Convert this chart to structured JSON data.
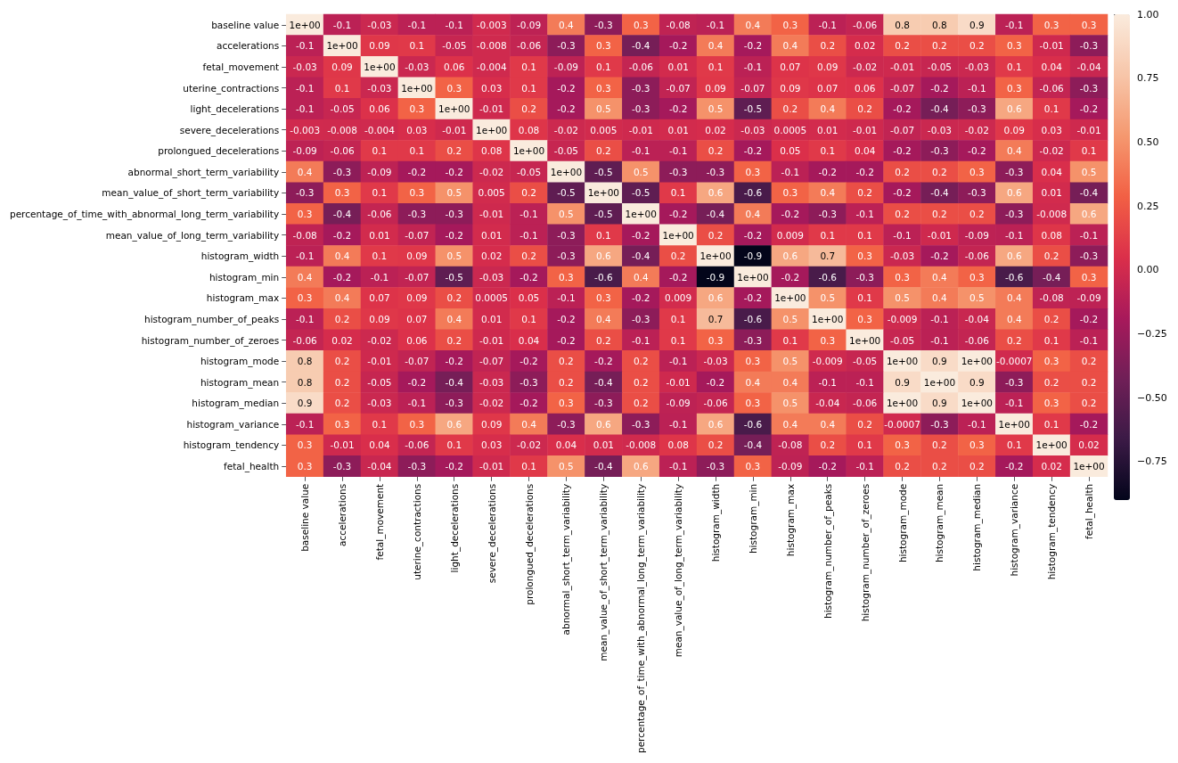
{
  "chart_data": {
    "type": "heatmap",
    "categories": [
      "baseline value",
      "accelerations",
      "fetal_movement",
      "uterine_contractions",
      "light_decelerations",
      "severe_decelerations",
      "prolongued_decelerations",
      "abnormal_short_term_variability",
      "mean_value_of_short_term_variability",
      "percentage_of_time_with_abnormal_long_term_variability",
      "mean_value_of_long_term_variability",
      "histogram_width",
      "histogram_min",
      "histogram_max",
      "histogram_number_of_peaks",
      "histogram_number_of_zeroes",
      "histogram_mode",
      "histogram_mean",
      "histogram_median",
      "histogram_variance",
      "histogram_tendency",
      "fetal_health"
    ],
    "y_categories": [
      "baseline value",
      "accelerations",
      "fetal_movement",
      "uterine_contractions",
      "light_decelerations",
      "severe_decelerations",
      "prolongued_decelerations",
      "abnormal_short_term_variability",
      "mean_value_of_short_term_variability",
      "percentage_of_time_with_abnormal_long_term_variability",
      "mean_value_of_long_term_variability",
      "histogram_width",
      "histogram_min",
      "histogram_max",
      "histogram_number_of_peaks",
      "histogram_number_of_zeroes",
      "histogram_mode",
      "histogram_mean",
      "histogram_median",
      "histogram_variance",
      "histogram_tendency",
      "fetal_health"
    ],
    "cells": [
      [
        1,
        -0.1,
        -0.03,
        -0.1,
        -0.1,
        -0.003,
        -0.09,
        0.4,
        -0.3,
        0.3,
        -0.08,
        -0.1,
        0.4,
        0.3,
        -0.1,
        -0.06,
        0.8,
        0.8,
        0.9,
        -0.1,
        0.3,
        0.3
      ],
      [
        -0.1,
        1,
        0.09,
        0.1,
        -0.05,
        -0.008,
        -0.06,
        -0.3,
        0.3,
        -0.4,
        -0.2,
        0.4,
        -0.2,
        0.4,
        0.2,
        0.02,
        0.2,
        0.2,
        0.2,
        0.3,
        -0.01,
        -0.3
      ],
      [
        -0.03,
        0.09,
        1,
        -0.03,
        0.06,
        -0.004,
        0.1,
        -0.09,
        0.1,
        -0.06,
        0.01,
        0.1,
        -0.1,
        0.07,
        0.09,
        -0.02,
        -0.01,
        -0.05,
        -0.03,
        0.1,
        0.04,
        -0.04
      ],
      [
        -0.1,
        0.1,
        -0.03,
        1,
        0.3,
        0.03,
        0.1,
        -0.2,
        0.3,
        -0.3,
        -0.07,
        0.09,
        -0.07,
        0.09,
        0.07,
        0.06,
        -0.07,
        -0.2,
        -0.1,
        0.3,
        -0.06,
        -0.3
      ],
      [
        -0.1,
        -0.05,
        0.06,
        0.3,
        1,
        -0.01,
        0.2,
        -0.2,
        0.5,
        -0.3,
        -0.2,
        0.5,
        -0.5,
        0.2,
        0.4,
        0.2,
        -0.2,
        -0.4,
        -0.3,
        0.6,
        0.1,
        -0.2
      ],
      [
        -0.003,
        -0.008,
        -0.004,
        0.03,
        -0.01,
        1,
        0.08,
        -0.02,
        0.005,
        -0.01,
        0.01,
        0.02,
        -0.03,
        0.0005,
        0.01,
        -0.01,
        -0.07,
        -0.03,
        -0.02,
        0.09,
        0.03,
        -0.01
      ],
      [
        -0.09,
        -0.06,
        0.1,
        0.1,
        0.2,
        0.08,
        1,
        -0.05,
        0.2,
        -0.1,
        -0.1,
        0.2,
        -0.2,
        0.05,
        0.1,
        0.04,
        -0.2,
        -0.3,
        -0.2,
        0.4,
        -0.02,
        0.1
      ],
      [
        0.4,
        -0.3,
        -0.09,
        -0.2,
        -0.2,
        -0.02,
        -0.05,
        1,
        -0.5,
        0.5,
        -0.3,
        -0.3,
        0.3,
        -0.1,
        -0.2,
        -0.2,
        0.2,
        0.2,
        0.3,
        -0.3,
        0.04,
        0.5
      ],
      [
        -0.3,
        0.3,
        0.1,
        0.3,
        0.5,
        0.005,
        0.2,
        -0.5,
        1,
        -0.5,
        0.1,
        0.6,
        -0.6,
        0.3,
        0.4,
        0.2,
        -0.2,
        -0.4,
        -0.3,
        0.6,
        0.01,
        -0.4
      ],
      [
        0.3,
        -0.4,
        -0.06,
        -0.3,
        -0.3,
        -0.01,
        -0.1,
        0.5,
        -0.5,
        1,
        -0.2,
        -0.4,
        0.4,
        -0.2,
        -0.3,
        -0.1,
        0.2,
        0.2,
        0.2,
        -0.3,
        -0.008,
        0.6
      ],
      [
        -0.08,
        -0.2,
        0.01,
        -0.07,
        -0.2,
        0.01,
        -0.1,
        -0.3,
        0.1,
        -0.2,
        1,
        0.2,
        -0.2,
        0.009,
        0.1,
        0.1,
        -0.1,
        -0.01,
        -0.09,
        -0.1,
        0.08,
        -0.1
      ],
      [
        -0.1,
        0.4,
        0.1,
        0.09,
        0.5,
        0.02,
        0.2,
        -0.3,
        0.6,
        -0.4,
        0.2,
        1,
        -0.9,
        0.6,
        0.7,
        0.3,
        -0.03,
        -0.2,
        -0.06,
        0.6,
        0.2,
        -0.3
      ],
      [
        0.4,
        -0.2,
        -0.1,
        -0.07,
        -0.5,
        -0.03,
        -0.2,
        0.3,
        -0.6,
        0.4,
        -0.2,
        -0.9,
        1,
        -0.2,
        -0.6,
        -0.3,
        0.3,
        0.4,
        0.3,
        -0.6,
        -0.4,
        0.3
      ],
      [
        0.3,
        0.4,
        0.07,
        0.09,
        0.2,
        0.0005,
        0.05,
        -0.1,
        0.3,
        -0.2,
        0.009,
        0.6,
        -0.2,
        1,
        0.5,
        0.1,
        0.5,
        0.4,
        0.5,
        0.4,
        -0.08,
        -0.09
      ],
      [
        -0.1,
        0.2,
        0.09,
        0.07,
        0.4,
        0.01,
        0.1,
        -0.2,
        0.4,
        -0.3,
        0.1,
        0.7,
        -0.6,
        0.5,
        1,
        0.3,
        -0.009,
        -0.1,
        -0.04,
        0.4,
        0.2,
        -0.2
      ],
      [
        -0.06,
        0.02,
        -0.02,
        0.06,
        0.2,
        -0.01,
        0.04,
        -0.2,
        0.2,
        -0.1,
        0.1,
        0.3,
        -0.3,
        0.1,
        0.3,
        1,
        -0.05,
        -0.1,
        -0.06,
        0.2,
        0.1,
        -0.1
      ],
      [
        0.8,
        0.2,
        -0.01,
        -0.07,
        -0.2,
        -0.07,
        -0.2,
        0.2,
        -0.2,
        0.2,
        -0.1,
        -0.03,
        0.3,
        0.5,
        -0.009,
        -0.05,
        1,
        0.9,
        1,
        -0.0007,
        0.3,
        0.2
      ],
      [
        0.8,
        0.2,
        -0.05,
        -0.2,
        -0.4,
        -0.03,
        -0.3,
        0.2,
        -0.4,
        0.2,
        -0.01,
        -0.2,
        0.4,
        0.4,
        -0.1,
        -0.1,
        0.9,
        1,
        0.9,
        -0.3,
        0.2,
        0.2
      ],
      [
        0.9,
        0.2,
        -0.03,
        -0.1,
        -0.3,
        -0.02,
        -0.2,
        0.3,
        -0.3,
        0.2,
        -0.09,
        -0.06,
        0.3,
        0.5,
        -0.04,
        -0.06,
        1,
        0.9,
        1,
        -0.1,
        0.3,
        0.2
      ],
      [
        -0.1,
        0.3,
        0.1,
        0.3,
        0.6,
        0.09,
        0.4,
        -0.3,
        0.6,
        -0.3,
        -0.1,
        0.6,
        -0.6,
        0.4,
        0.4,
        0.2,
        -0.0007,
        -0.3,
        -0.1,
        1,
        0.1,
        -0.2
      ],
      [
        0.3,
        -0.01,
        0.04,
        -0.06,
        0.1,
        0.03,
        -0.02,
        0.04,
        0.01,
        -0.008,
        0.08,
        0.2,
        -0.4,
        -0.08,
        0.2,
        0.1,
        0.3,
        0.2,
        0.3,
        0.1,
        1,
        0.02
      ],
      [
        0.3,
        -0.3,
        -0.04,
        -0.3,
        -0.2,
        -0.01,
        0.1,
        0.5,
        -0.4,
        0.6,
        -0.1,
        -0.3,
        0.3,
        -0.09,
        -0.2,
        -0.1,
        0.2,
        0.2,
        0.2,
        -0.2,
        0.02,
        1
      ]
    ],
    "cell_labels": [
      [
        "1e+00",
        "-0.1",
        "-0.03",
        "-0.1",
        "-0.1",
        "-0.003",
        "-0.09",
        "0.4",
        "-0.3",
        "0.3",
        "-0.08",
        "-0.1",
        "0.4",
        "0.3",
        "-0.1",
        "-0.06",
        "0.8",
        "0.8",
        "0.9",
        "-0.1",
        "0.3",
        "0.3"
      ],
      [
        "-0.1",
        "1e+00",
        "0.09",
        "0.1",
        "-0.05",
        "-0.008",
        "-0.06",
        "-0.3",
        "0.3",
        "-0.4",
        "-0.2",
        "0.4",
        "-0.2",
        "0.4",
        "0.2",
        "0.02",
        "0.2",
        "0.2",
        "0.2",
        "0.3",
        "-0.01",
        "-0.3"
      ],
      [
        "-0.03",
        "0.09",
        "1e+00",
        "-0.03",
        "0.06",
        "-0.004",
        "0.1",
        "-0.09",
        "0.1",
        "-0.06",
        "0.01",
        "0.1",
        "-0.1",
        "0.07",
        "0.09",
        "-0.02",
        "-0.01",
        "-0.05",
        "-0.03",
        "0.1",
        "0.04",
        "-0.04"
      ],
      [
        "-0.1",
        "0.1",
        "-0.03",
        "1e+00",
        "0.3",
        "0.03",
        "0.1",
        "-0.2",
        "0.3",
        "-0.3",
        "-0.07",
        "0.09",
        "-0.07",
        "0.09",
        "0.07",
        "0.06",
        "-0.07",
        "-0.2",
        "-0.1",
        "0.3",
        "-0.06",
        "-0.3"
      ],
      [
        "-0.1",
        "-0.05",
        "0.06",
        "0.3",
        "1e+00",
        "-0.01",
        "0.2",
        "-0.2",
        "0.5",
        "-0.3",
        "-0.2",
        "0.5",
        "-0.5",
        "0.2",
        "0.4",
        "0.2",
        "-0.2",
        "-0.4",
        "-0.3",
        "0.6",
        "0.1",
        "-0.2"
      ],
      [
        "-0.003",
        "-0.008",
        "-0.004",
        "0.03",
        "-0.01",
        "1e+00",
        "0.08",
        "-0.02",
        "0.005",
        "-0.01",
        "0.01",
        "0.02",
        "-0.03",
        "0.0005",
        "0.01",
        "-0.01",
        "-0.07",
        "-0.03",
        "-0.02",
        "0.09",
        "0.03",
        "-0.01"
      ],
      [
        "-0.09",
        "-0.06",
        "0.1",
        "0.1",
        "0.2",
        "0.08",
        "1e+00",
        "-0.05",
        "0.2",
        "-0.1",
        "-0.1",
        "0.2",
        "-0.2",
        "0.05",
        "0.1",
        "0.04",
        "-0.2",
        "-0.3",
        "-0.2",
        "0.4",
        "-0.02",
        "0.1"
      ],
      [
        "0.4",
        "-0.3",
        "-0.09",
        "-0.2",
        "-0.2",
        "-0.02",
        "-0.05",
        "1e+00",
        "-0.5",
        "0.5",
        "-0.3",
        "-0.3",
        "0.3",
        "-0.1",
        "-0.2",
        "-0.2",
        "0.2",
        "0.2",
        "0.3",
        "-0.3",
        "0.04",
        "0.5"
      ],
      [
        "-0.3",
        "0.3",
        "0.1",
        "0.3",
        "0.5",
        "0.005",
        "0.2",
        "-0.5",
        "1e+00",
        "-0.5",
        "0.1",
        "0.6",
        "-0.6",
        "0.3",
        "0.4",
        "0.2",
        "-0.2",
        "-0.4",
        "-0.3",
        "0.6",
        "0.01",
        "-0.4"
      ],
      [
        "0.3",
        "-0.4",
        "-0.06",
        "-0.3",
        "-0.3",
        "-0.01",
        "-0.1",
        "0.5",
        "-0.5",
        "1e+00",
        "-0.2",
        "-0.4",
        "0.4",
        "-0.2",
        "-0.3",
        "-0.1",
        "0.2",
        "0.2",
        "0.2",
        "-0.3",
        "-0.008",
        "0.6"
      ],
      [
        "-0.08",
        "-0.2",
        "0.01",
        "-0.07",
        "-0.2",
        "0.01",
        "-0.1",
        "-0.3",
        "0.1",
        "-0.2",
        "1e+00",
        "0.2",
        "-0.2",
        "0.009",
        "0.1",
        "0.1",
        "-0.1",
        "-0.01",
        "-0.09",
        "-0.1",
        "0.08",
        "-0.1"
      ],
      [
        "-0.1",
        "0.4",
        "0.1",
        "0.09",
        "0.5",
        "0.02",
        "0.2",
        "-0.3",
        "0.6",
        "-0.4",
        "0.2",
        "1e+00",
        "-0.9",
        "0.6",
        "0.7",
        "0.3",
        "-0.03",
        "-0.2",
        "-0.06",
        "0.6",
        "0.2",
        "-0.3"
      ],
      [
        "0.4",
        "-0.2",
        "-0.1",
        "-0.07",
        "-0.5",
        "-0.03",
        "-0.2",
        "0.3",
        "-0.6",
        "0.4",
        "-0.2",
        "-0.9",
        "1e+00",
        "-0.2",
        "-0.6",
        "-0.3",
        "0.3",
        "0.4",
        "0.3",
        "-0.6",
        "-0.4",
        "0.3"
      ],
      [
        "0.3",
        "0.4",
        "0.07",
        "0.09",
        "0.2",
        "0.0005",
        "0.05",
        "-0.1",
        "0.3",
        "-0.2",
        "0.009",
        "0.6",
        "-0.2",
        "1e+00",
        "0.5",
        "0.1",
        "0.5",
        "0.4",
        "0.5",
        "0.4",
        "-0.08",
        "-0.09"
      ],
      [
        "-0.1",
        "0.2",
        "0.09",
        "0.07",
        "0.4",
        "0.01",
        "0.1",
        "-0.2",
        "0.4",
        "-0.3",
        "0.1",
        "0.7",
        "-0.6",
        "0.5",
        "1e+00",
        "0.3",
        "-0.009",
        "-0.1",
        "-0.04",
        "0.4",
        "0.2",
        "-0.2"
      ],
      [
        "-0.06",
        "0.02",
        "-0.02",
        "0.06",
        "0.2",
        "-0.01",
        "0.04",
        "-0.2",
        "0.2",
        "-0.1",
        "0.1",
        "0.3",
        "-0.3",
        "0.1",
        "0.3",
        "1e+00",
        "-0.05",
        "-0.1",
        "-0.06",
        "0.2",
        "0.1",
        "-0.1"
      ],
      [
        "0.8",
        "0.2",
        "-0.01",
        "-0.07",
        "-0.2",
        "-0.07",
        "-0.2",
        "0.2",
        "-0.2",
        "0.2",
        "-0.1",
        "-0.03",
        "0.3",
        "0.5",
        "-0.009",
        "-0.05",
        "1e+00",
        "0.9",
        "1e+00",
        "-0.0007",
        "0.3",
        "0.2"
      ],
      [
        "0.8",
        "0.2",
        "-0.05",
        "-0.2",
        "-0.4",
        "-0.03",
        "-0.3",
        "0.2",
        "-0.4",
        "0.2",
        "-0.01",
        "-0.2",
        "0.4",
        "0.4",
        "-0.1",
        "-0.1",
        "0.9",
        "1e+00",
        "0.9",
        "-0.3",
        "0.2",
        "0.2"
      ],
      [
        "0.9",
        "0.2",
        "-0.03",
        "-0.1",
        "-0.3",
        "-0.02",
        "-0.2",
        "0.3",
        "-0.3",
        "0.2",
        "-0.09",
        "-0.06",
        "0.3",
        "0.5",
        "-0.04",
        "-0.06",
        "1e+00",
        "0.9",
        "1e+00",
        "-0.1",
        "0.3",
        "0.2"
      ],
      [
        "-0.1",
        "0.3",
        "0.1",
        "0.3",
        "0.6",
        "0.09",
        "0.4",
        "-0.3",
        "0.6",
        "-0.3",
        "-0.1",
        "0.6",
        "-0.6",
        "0.4",
        "0.4",
        "0.2",
        "-0.0007",
        "-0.3",
        "-0.1",
        "1e+00",
        "0.1",
        "-0.2"
      ],
      [
        "0.3",
        "-0.01",
        "0.04",
        "-0.06",
        "0.1",
        "0.03",
        "-0.02",
        "0.04",
        "0.01",
        "-0.008",
        "0.08",
        "0.2",
        "-0.4",
        "-0.08",
        "0.2",
        "0.1",
        "0.3",
        "0.2",
        "0.3",
        "0.1",
        "1e+00",
        "0.02"
      ],
      [
        "0.3",
        "-0.3",
        "-0.04",
        "-0.3",
        "-0.2",
        "-0.01",
        "0.1",
        "0.5",
        "-0.4",
        "0.6",
        "-0.1",
        "-0.3",
        "0.3",
        "-0.09",
        "-0.2",
        "-0.1",
        "0.2",
        "0.2",
        "0.2",
        "-0.2",
        "0.02",
        "1e+00"
      ]
    ],
    "clim": [
      -0.9,
      1
    ],
    "cticks": [
      {
        "value": 1,
        "label": "1.00"
      },
      {
        "value": 0.75,
        "label": "0.75"
      },
      {
        "value": 0.5,
        "label": "0.50"
      },
      {
        "value": 0.25,
        "label": "0.25"
      },
      {
        "value": 0,
        "label": "0.00"
      },
      {
        "value": -0.25,
        "label": "−0.25"
      },
      {
        "value": -0.5,
        "label": "−0.50"
      },
      {
        "value": -0.75,
        "label": "−0.75"
      }
    ]
  }
}
